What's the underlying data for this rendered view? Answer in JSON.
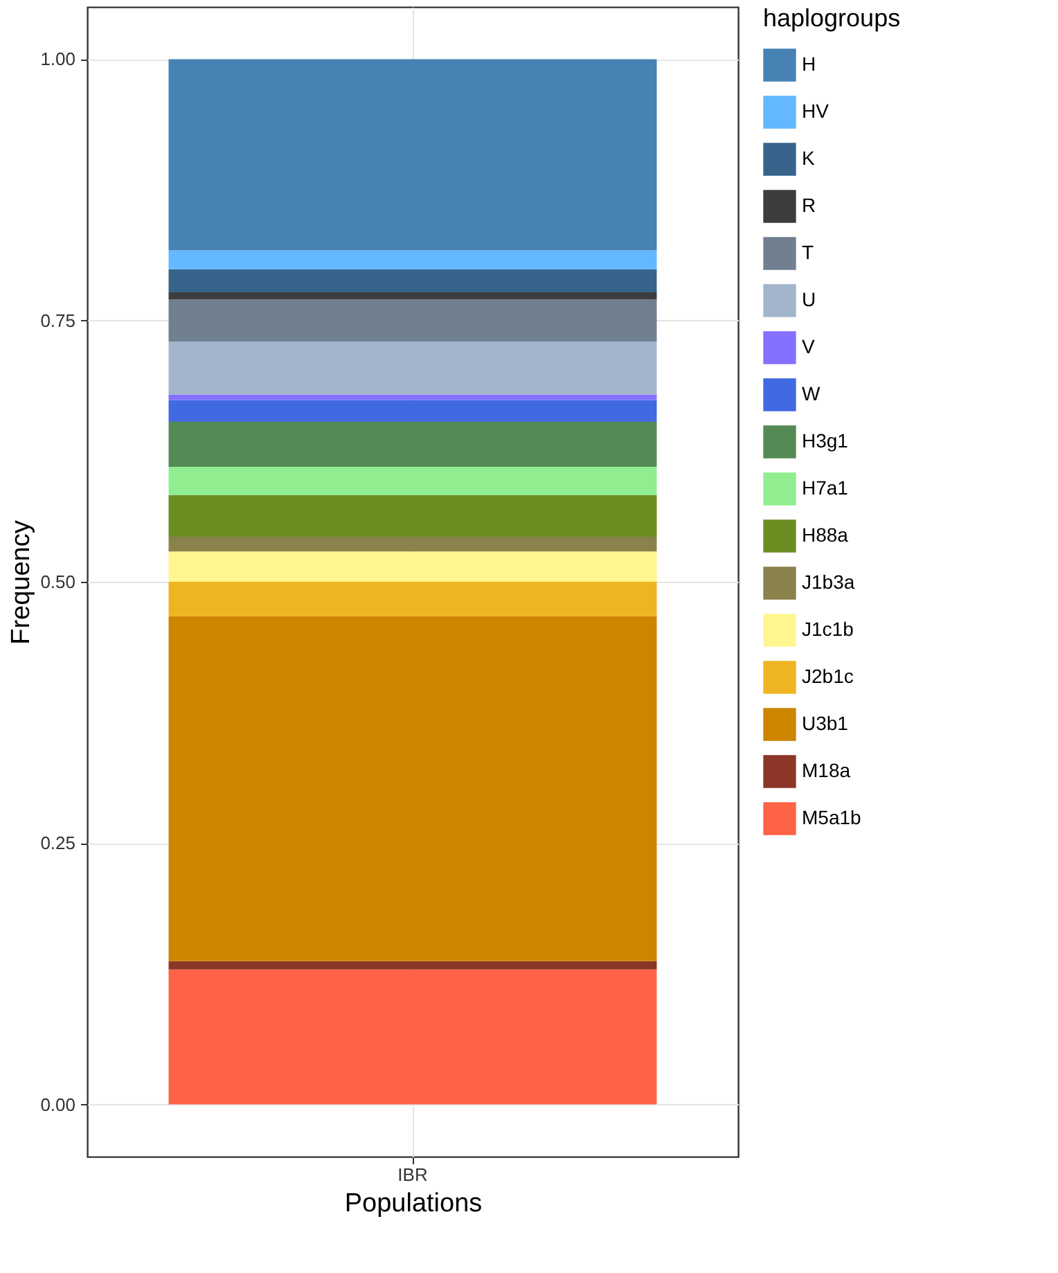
{
  "chart_data": {
    "type": "bar",
    "stacked": true,
    "xlabel": "Populations",
    "ylabel": "Frequency",
    "legend_title": "haplogroups",
    "legend": "right",
    "grid": true,
    "categories": [
      "IBR"
    ],
    "ylim": [
      -0.05,
      1.05
    ],
    "yticks": [
      {
        "value": 0,
        "label": "0.00"
      },
      {
        "value": 0.25,
        "label": "0.25"
      },
      {
        "value": 0.5,
        "label": "0.50"
      },
      {
        "value": 0.75,
        "label": "0.75"
      },
      {
        "value": 1,
        "label": "1.00"
      }
    ],
    "series": [
      {
        "name": "M5a1b",
        "color": "#ff6347",
        "values": [
          0.129
        ]
      },
      {
        "name": "M18a",
        "color": "#8b3626",
        "values": [
          0.008
        ]
      },
      {
        "name": "U3b1",
        "color": "#cd8500",
        "values": [
          0.33
        ]
      },
      {
        "name": "J2b1c",
        "color": "#eeb422",
        "values": [
          0.033
        ]
      },
      {
        "name": "J1c1b",
        "color": "#fff68f",
        "values": [
          0.029
        ]
      },
      {
        "name": "J1b3a",
        "color": "#8b814c",
        "values": [
          0.014
        ]
      },
      {
        "name": "H88a",
        "color": "#6b8e23",
        "values": [
          0.04
        ]
      },
      {
        "name": "H7a1",
        "color": "#90ee90",
        "values": [
          0.027
        ]
      },
      {
        "name": "H3g1",
        "color": "#548b54",
        "values": [
          0.043
        ]
      },
      {
        "name": "W",
        "color": "#4169e1",
        "values": [
          0.021
        ]
      },
      {
        "name": "V",
        "color": "#8470ff",
        "values": [
          0.005
        ]
      },
      {
        "name": "U",
        "color": "#a2b5cd",
        "values": [
          0.051
        ]
      },
      {
        "name": "T",
        "color": "#708090",
        "values": [
          0.04
        ]
      },
      {
        "name": "R",
        "color": "#3d3d3d",
        "values": [
          0.007
        ]
      },
      {
        "name": "K",
        "color": "#36648b",
        "values": [
          0.022
        ]
      },
      {
        "name": "HV",
        "color": "#63b8ff",
        "values": [
          0.018
        ]
      },
      {
        "name": "H",
        "color": "#4682b4",
        "values": [
          0.183
        ]
      }
    ]
  }
}
